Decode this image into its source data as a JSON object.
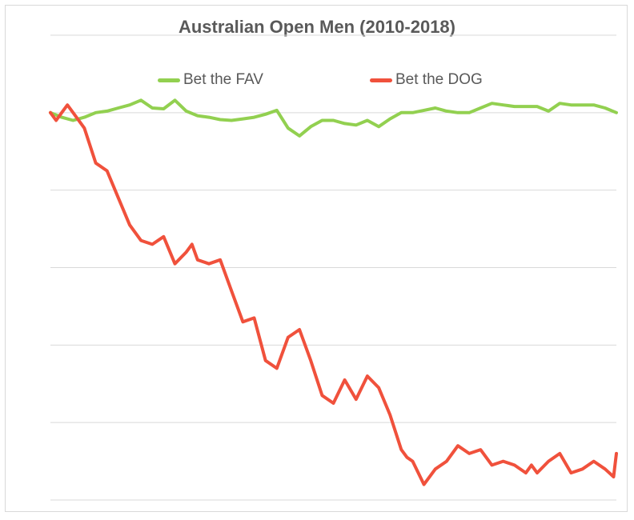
{
  "chart_data": {
    "type": "line",
    "title": "Australian Open Men (2010-2018)",
    "xlabel": "",
    "ylabel": "",
    "grid": true,
    "legend_position": "top",
    "x_range": [
      0,
      1000
    ],
    "ylim": [
      -50,
      10
    ],
    "series": [
      {
        "name": "Bet the FAV",
        "color": "#92d050",
        "x": [
          0,
          20,
          40,
          60,
          80,
          100,
          120,
          140,
          160,
          180,
          200,
          220,
          240,
          260,
          280,
          300,
          320,
          340,
          360,
          380,
          400,
          420,
          440,
          460,
          480,
          500,
          520,
          540,
          560,
          580,
          600,
          620,
          640,
          660,
          680,
          700,
          720,
          740,
          760,
          780,
          800,
          820,
          840,
          860,
          880,
          900,
          920,
          940,
          960,
          980,
          1000
        ],
        "values": [
          0,
          -0.6,
          -1.0,
          -0.6,
          0,
          0.2,
          0.6,
          1.0,
          1.6,
          0.6,
          0.5,
          1.6,
          0.2,
          -0.4,
          -0.6,
          -0.9,
          -1.0,
          -0.8,
          -0.6,
          -0.2,
          0.3,
          -2.0,
          -3.0,
          -1.8,
          -1.0,
          -1.0,
          -1.4,
          -1.6,
          -1.0,
          -1.8,
          -0.8,
          0,
          0,
          0.3,
          0.6,
          0.2,
          0,
          0,
          0.6,
          1.2,
          1.0,
          0.8,
          0.8,
          0.8,
          0.2,
          1.2,
          1.0,
          1.0,
          1.0,
          0.6,
          0
        ]
      },
      {
        "name": "Bet the DOG",
        "color": "#f0513c",
        "x": [
          0,
          10,
          20,
          30,
          40,
          60,
          80,
          100,
          120,
          140,
          160,
          180,
          200,
          220,
          240,
          250,
          260,
          280,
          300,
          320,
          340,
          360,
          380,
          400,
          420,
          440,
          460,
          480,
          500,
          520,
          540,
          560,
          580,
          600,
          620,
          630,
          640,
          660,
          680,
          700,
          720,
          740,
          760,
          780,
          800,
          820,
          840,
          850,
          860,
          880,
          900,
          920,
          940,
          960,
          980,
          995,
          1000
        ],
        "values": [
          0,
          -1,
          0,
          1,
          0,
          -2.0,
          -6.5,
          -7.5,
          -11.0,
          -14.5,
          -16.5,
          -17.0,
          -16.0,
          -19.5,
          -18.0,
          -17.0,
          -19.0,
          -19.5,
          -19.0,
          -23.0,
          -27.0,
          -26.5,
          -32.0,
          -33.0,
          -29.0,
          -28.0,
          -32.0,
          -36.5,
          -37.5,
          -34.5,
          -37.0,
          -34.0,
          -35.5,
          -39.0,
          -43.5,
          -44.5,
          -45.0,
          -48.0,
          -46.0,
          -45.0,
          -43.0,
          -44.0,
          -43.5,
          -45.5,
          -45.0,
          -45.5,
          -46.5,
          -45.5,
          -46.5,
          -45.0,
          -44.0,
          -46.5,
          -46.0,
          -45.0,
          -46.0,
          -47.0,
          -44.0
        ]
      }
    ]
  }
}
